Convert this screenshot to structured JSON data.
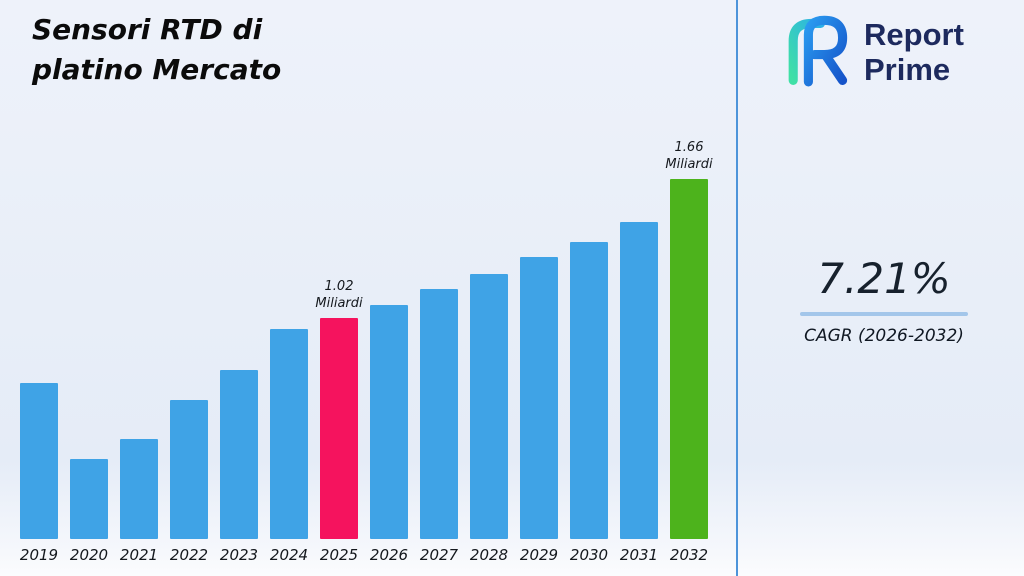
{
  "title": {
    "line1": "Sensori RTD di",
    "line2": "platino Mercato"
  },
  "logo": {
    "line1": "Report",
    "line2": "Prime"
  },
  "stats": {
    "cagr_value": "7.21%",
    "cagr_label": "CAGR (2026-2032)"
  },
  "chart_data": {
    "type": "bar",
    "title": "Sensori RTD di platino Mercato",
    "unit": "Miliardi",
    "categories": [
      "2019",
      "2020",
      "2021",
      "2022",
      "2023",
      "2024",
      "2025",
      "2026",
      "2027",
      "2028",
      "2029",
      "2030",
      "2031",
      "2032"
    ],
    "values": [
      0.72,
      0.37,
      0.46,
      0.64,
      0.78,
      0.97,
      1.02,
      1.08,
      1.15,
      1.22,
      1.3,
      1.37,
      1.46,
      1.66
    ],
    "ylim": [
      0,
      1.8
    ],
    "grid": false,
    "legend": "none",
    "bar_color_default": "#3fa3e6",
    "highlights": [
      {
        "year": "2025",
        "color": "#f5135e",
        "label_lines": [
          "1.02",
          "Miliardi"
        ]
      },
      {
        "year": "2032",
        "color": "#4db31c",
        "label_lines": [
          "1.66",
          "Miliardi"
        ]
      }
    ],
    "accent_divider_color": "#4d94da"
  }
}
